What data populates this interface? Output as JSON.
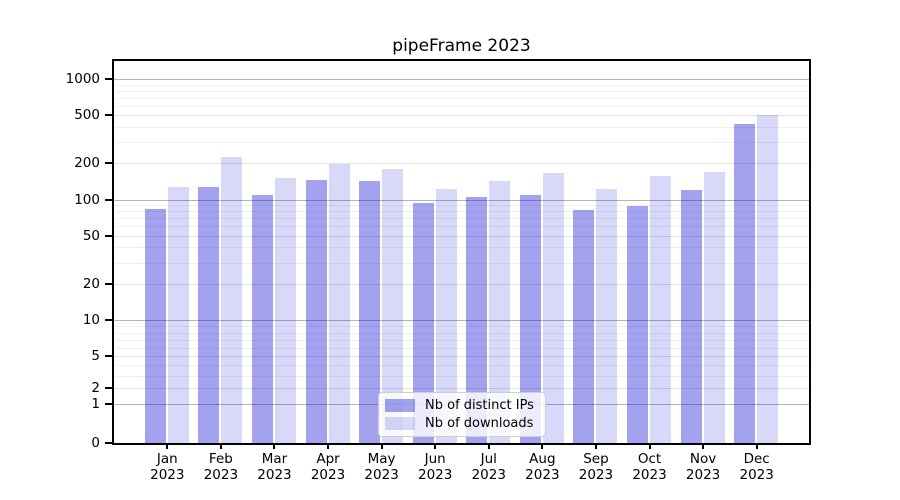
{
  "chart_data": {
    "type": "bar",
    "title": "pipeFrame 2023",
    "scale": "symlog",
    "grid": true,
    "categories": [
      "Jan",
      "Feb",
      "Mar",
      "Apr",
      "May",
      "Jun",
      "Jul",
      "Aug",
      "Sep",
      "Oct",
      "Nov",
      "Dec"
    ],
    "year": "2023",
    "series": [
      {
        "name": "Nb of distinct IPs",
        "color": "rgba(10,10,210,0.38)",
        "values": [
          83,
          128,
          108,
          145,
          142,
          93,
          105,
          108,
          82,
          89,
          119,
          425
        ]
      },
      {
        "name": "Nb of downloads",
        "color": "rgba(10,10,210,0.16)",
        "values": [
          126,
          224,
          150,
          197,
          180,
          122,
          143,
          165,
          122,
          158,
          169,
          500
        ]
      }
    ],
    "y_ticks": [
      0,
      1,
      2,
      5,
      10,
      20,
      50,
      100,
      200,
      500,
      1000
    ],
    "y_minor_ticks": [
      3,
      4,
      6,
      7,
      8,
      9,
      30,
      40,
      60,
      70,
      80,
      90,
      300,
      400,
      600,
      700,
      800,
      900
    ],
    "emphasized_gridlines": [
      1,
      10,
      100,
      1000
    ],
    "ylim": [
      0,
      1370
    ],
    "legend_position": "lower center",
    "background_color": "#ffffff"
  }
}
